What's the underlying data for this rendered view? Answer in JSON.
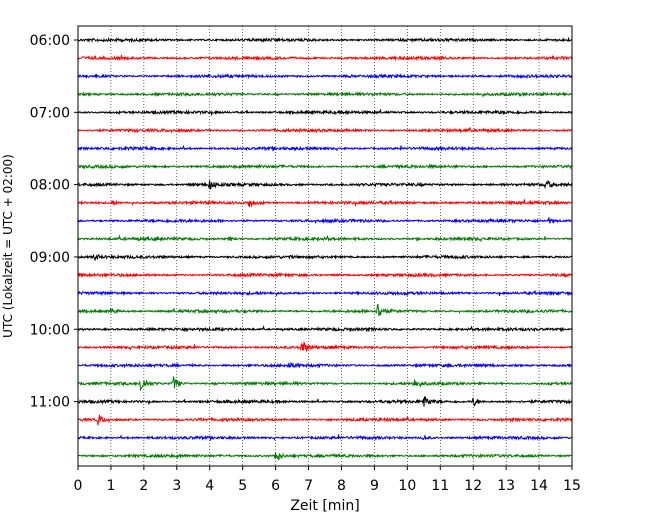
{
  "chart_data": {
    "type": "line",
    "xlabel": "Zeit  [min]",
    "ylabel": "UTC (Lokalzeit = UTC + 02:00)",
    "xlim": [
      0,
      15
    ],
    "x_ticks": [
      "0",
      "1",
      "2",
      "3",
      "4",
      "5",
      "6",
      "7",
      "8",
      "9",
      "10",
      "11",
      "12",
      "13",
      "14",
      "15"
    ],
    "y_tick_labels": [
      "06:00",
      "07:00",
      "08:00",
      "09:00",
      "10:00",
      "11:00"
    ],
    "grid": "vertical-dotted",
    "trace_interval_minutes": 15,
    "trace_count": 24,
    "trace_colors": [
      "#000000",
      "#ff0000",
      "#0000ff",
      "#008000"
    ],
    "events": [
      {
        "trace": 8,
        "t": 4.0,
        "amp": 0.8
      },
      {
        "trace": 8,
        "t": 14.2,
        "amp": 0.8
      },
      {
        "trace": 9,
        "t": 1.0,
        "amp": 0.5
      },
      {
        "trace": 9,
        "t": 5.2,
        "amp": 0.9
      },
      {
        "trace": 10,
        "t": 14.3,
        "amp": 0.4
      },
      {
        "trace": 11,
        "t": 4.6,
        "amp": 0.4
      },
      {
        "trace": 12,
        "t": 0.5,
        "amp": 0.5
      },
      {
        "trace": 15,
        "t": 1.0,
        "amp": 0.5
      },
      {
        "trace": 15,
        "t": 9.1,
        "amp": 1.4
      },
      {
        "trace": 17,
        "t": 6.8,
        "amp": 1.2
      },
      {
        "trace": 18,
        "t": 6.4,
        "amp": 0.5
      },
      {
        "trace": 19,
        "t": 1.9,
        "amp": 1.6
      },
      {
        "trace": 19,
        "t": 2.9,
        "amp": 1.1
      },
      {
        "trace": 19,
        "t": 10.2,
        "amp": 0.7
      },
      {
        "trace": 20,
        "t": 10.5,
        "amp": 1.0
      },
      {
        "trace": 20,
        "t": 12.0,
        "amp": 0.9
      },
      {
        "trace": 21,
        "t": 0.6,
        "amp": 1.0
      },
      {
        "trace": 22,
        "t": 10.5,
        "amp": 0.5
      },
      {
        "trace": 23,
        "t": 6.0,
        "amp": 1.1
      }
    ]
  }
}
